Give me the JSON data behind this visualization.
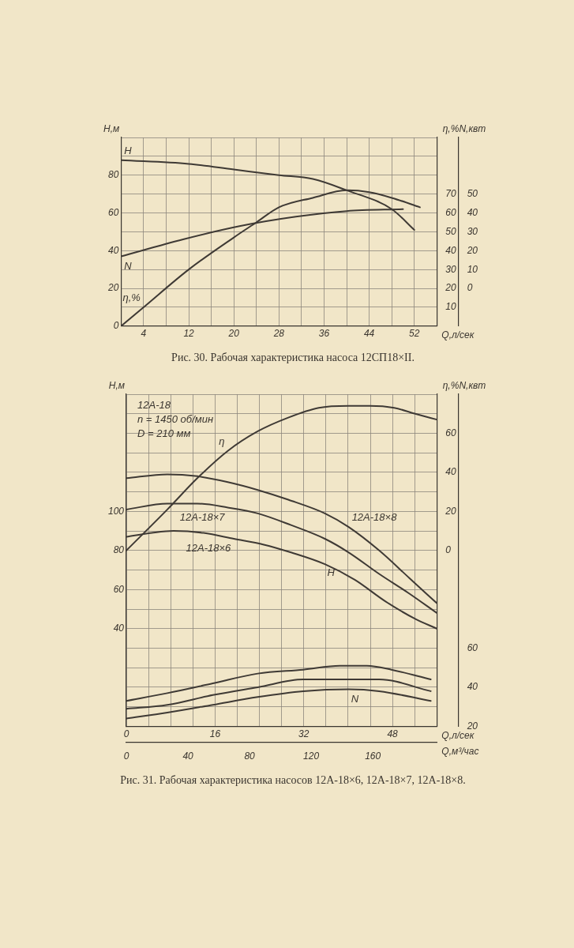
{
  "chart_data": [
    {
      "type": "line",
      "title": "Рис. 30. Рабочая характеристика насоса 12СП18×II.",
      "xlabel": "Q,л/сек",
      "ylabel": "H,м",
      "y2label": "η,%",
      "y3label": "N,квт",
      "xlim": [
        0,
        56
      ],
      "xticks": [
        {
          "value": 0,
          "label": null
        },
        4,
        {
          "value": 8,
          "label": null
        },
        12,
        {
          "value": 16,
          "label": null
        },
        20,
        {
          "value": 24,
          "label": null
        },
        28,
        {
          "value": 32,
          "label": null
        },
        36,
        {
          "value": 40,
          "label": null
        },
        44,
        {
          "value": 48,
          "label": null
        },
        52,
        {
          "value": 56,
          "label": null
        }
      ],
      "ylim": [
        0,
        100
      ],
      "yticks": [
        0,
        {
          "value": 10,
          "label": null
        },
        20,
        {
          "value": 30,
          "label": null
        },
        40,
        {
          "value": 50,
          "label": null
        },
        60,
        {
          "value": 70,
          "label": null
        },
        80,
        {
          "value": 90,
          "label": null
        },
        {
          "value": 100,
          "label": null
        }
      ],
      "y2lim": [
        0,
        100
      ],
      "y2ticks": [
        10,
        20,
        30,
        40,
        50,
        60,
        70
      ],
      "y3lim": [
        -20,
        80
      ],
      "y3ticks": [
        0,
        10,
        20,
        30,
        40,
        50
      ],
      "grid": true,
      "series": [
        {
          "name": "H",
          "color": "#3f3a35",
          "x": [
            0,
            12,
            20,
            28,
            34,
            40,
            48,
            52
          ],
          "values": [
            88,
            86,
            83,
            80,
            78,
            72,
            62,
            51
          ]
        },
        {
          "name": "N",
          "color": "#3f3a35",
          "axis": "y3",
          "x": [
            0,
            11,
            21,
            31,
            40,
            50
          ],
          "values": [
            17,
            26,
            33,
            38,
            41,
            42
          ]
        },
        {
          "name": "η,%",
          "color": "#3f3a35",
          "axis": "y2",
          "x": [
            0,
            4,
            12,
            20,
            24,
            28,
            34,
            40,
            44,
            48,
            53
          ],
          "values": [
            0,
            10,
            30,
            47,
            55,
            63,
            68,
            72,
            71,
            68,
            63
          ]
        }
      ]
    },
    {
      "type": "line",
      "title": "Рис. 31. Рабочая характеристика насосов 12А-18×6, 12А-18×7, 12А-18×8.",
      "xlabel": "Q,л/сек",
      "x2label": "Q,м³/час",
      "ylabel": "H,м",
      "y2label": "η,%",
      "y3label": "N,квт",
      "xlim": [
        0,
        56
      ],
      "xticks": [
        0,
        {
          "value": 4,
          "label": null
        },
        {
          "value": 8,
          "label": null
        },
        {
          "value": 12,
          "label": null
        },
        16,
        {
          "value": 20,
          "label": null
        },
        {
          "value": 24,
          "label": null
        },
        {
          "value": 28,
          "label": null
        },
        32,
        {
          "value": 36,
          "label": null
        },
        {
          "value": 40,
          "label": null
        },
        {
          "value": 44,
          "label": null
        },
        48,
        {
          "value": 52,
          "label": null
        },
        {
          "value": 56,
          "label": null
        }
      ],
      "x2lim": [
        0,
        201.6
      ],
      "x2ticks": [
        0,
        40,
        80,
        120,
        160
      ],
      "ylim": [
        -10,
        160
      ],
      "yticks": [
        {
          "value": -10,
          "label": null
        },
        {
          "value": 0,
          "label": null
        },
        {
          "value": 10,
          "label": null
        },
        {
          "value": 20,
          "label": null
        },
        {
          "value": 30,
          "label": null
        },
        40,
        {
          "value": 50,
          "label": null
        },
        60,
        {
          "value": 70,
          "label": null
        },
        80,
        {
          "value": 90,
          "label": null
        },
        100,
        {
          "value": 110,
          "label": null
        },
        {
          "value": 120,
          "label": null
        },
        {
          "value": 130,
          "label": null
        },
        {
          "value": 140,
          "label": null
        },
        {
          "value": 150,
          "label": null
        },
        {
          "value": 160,
          "label": null
        }
      ],
      "y2lim": [
        -90,
        80
      ],
      "y2ticks": [
        0,
        20,
        40,
        60
      ],
      "y3lim": [
        20,
        190
      ],
      "y3ticks": [
        20,
        40,
        60
      ],
      "grid": true,
      "annotations": [
        "12А-18",
        "n = 1450 об/мин",
        "D = 210 мм",
        {
          "text": "H",
          "x": 35.8,
          "y": 73
        },
        {
          "text": "N",
          "x": 40.1,
          "y": 8.5
        }
      ],
      "series": [
        {
          "name": "η",
          "color": "#3f3a35",
          "axis": "y2",
          "x": [
            0,
            7.4,
            12.8,
            18.3,
            23.7,
            29.2,
            34.7,
            40.1,
            43.9,
            48.3,
            52.1,
            56
          ],
          "values": [
            0,
            21,
            37,
            51,
            61,
            68,
            73,
            74,
            74,
            73,
            70,
            67
          ]
        },
        {
          "name": "12А-18×8",
          "color": "#3f3a35",
          "x": [
            0,
            7.4,
            12.8,
            18.3,
            23.7,
            29.2,
            35.8,
            40.1,
            45.6,
            51,
            56
          ],
          "values": [
            117,
            119,
            118,
            115,
            111,
            106,
            99,
            92,
            80,
            66,
            53
          ]
        },
        {
          "name": "12А-18×7",
          "color": "#3f3a35",
          "x": [
            0,
            7.4,
            12.8,
            18.3,
            23.7,
            29.7,
            35.8,
            40.1,
            45.6,
            51,
            56
          ],
          "values": [
            101,
            104,
            104,
            102,
            99,
            93,
            86,
            79,
            68,
            58,
            48
          ]
        },
        {
          "name": "12А-18×6",
          "color": "#3f3a35",
          "x": [
            0,
            4.6,
            8.5,
            13.9,
            19.4,
            24.8,
            29.7,
            35.8,
            41.2,
            46.7,
            52.1,
            56
          ],
          "values": [
            87,
            89,
            90,
            89,
            86,
            83,
            79,
            73,
            65,
            54,
            45,
            40
          ]
        },
        {
          "color": "#3f3a35",
          "axis": "y3",
          "x": [
            0,
            7.4,
            15.6,
            23.7,
            31.9,
            38.5,
            43.4,
            47.8,
            54.9
          ],
          "values": [
            33,
            37,
            42,
            47,
            49,
            51,
            51,
            49,
            44
          ]
        },
        {
          "color": "#3f3a35",
          "axis": "y3",
          "x": [
            0,
            7.4,
            15.6,
            23.7,
            31.9,
            38.5,
            45.6,
            54.9
          ],
          "values": [
            29,
            31,
            36,
            40,
            44,
            44,
            44,
            38
          ]
        },
        {
          "color": "#3f3a35",
          "axis": "y3",
          "x": [
            0,
            7.4,
            15.6,
            23.7,
            31.9,
            40.1,
            45.6,
            54.9
          ],
          "values": [
            24,
            27,
            31,
            35,
            38,
            39,
            38,
            33
          ]
        }
      ]
    }
  ]
}
